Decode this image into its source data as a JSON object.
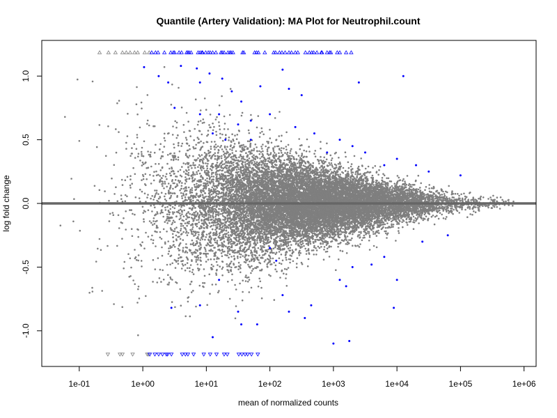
{
  "chart_data": {
    "type": "scatter",
    "title": "Quantile (Artery Validation): MA Plot for Neutrophil.count",
    "xlabel": "mean of normalized counts",
    "ylabel": "log fold change",
    "xscale": "log10",
    "xlim_log10": [
      -1.59,
      6.19
    ],
    "ylim": [
      -1.28,
      1.28
    ],
    "x_ticks": [
      {
        "log10": -1,
        "label": "1e-01"
      },
      {
        "log10": 0,
        "label": "1e+00"
      },
      {
        "log10": 1,
        "label": "1e+01"
      },
      {
        "log10": 2,
        "label": "1e+02"
      },
      {
        "log10": 3,
        "label": "1e+03"
      },
      {
        "log10": 4,
        "label": "1e+04"
      },
      {
        "log10": 5,
        "label": "1e+05"
      },
      {
        "log10": 6,
        "label": "1e+06"
      }
    ],
    "y_ticks": [
      {
        "value": 1.0,
        "label": "1.0"
      },
      {
        "value": 0.5,
        "label": "0.5"
      },
      {
        "value": 0.0,
        "label": "0.0"
      },
      {
        "value": -0.5,
        "label": "-0.5"
      },
      {
        "value": -1.0,
        "label": "-1.0"
      }
    ],
    "reference_line": 0,
    "colors": {
      "nonsignificant": "#7f7f7f",
      "significant": "#0000ff",
      "reference": "#666666"
    },
    "nonsignificant_cloud": {
      "n_points": 16000,
      "log10_mean_range": [
        -1.35,
        5.85
      ],
      "log10_mean_center": 2.6,
      "lfc_sd_at_low_counts": 0.45,
      "lfc_sd_at_high_counts": 0.02
    },
    "out_of_range_marker_lfc": 1.186,
    "gray_triangles_up_log10": [
      -0.68,
      -0.54,
      -0.43,
      -0.32,
      -0.26,
      -0.2,
      -0.13,
      -0.08,
      0.03,
      0.1
    ],
    "blue_triangles_up_log10": [
      0.14,
      0.2,
      0.24,
      0.34,
      0.44,
      0.48,
      0.5,
      0.57,
      0.61,
      0.69,
      0.71,
      0.73,
      0.76,
      0.87,
      0.9,
      0.93,
      0.94,
      0.99,
      1.03,
      1.06,
      1.1,
      1.15,
      1.23,
      1.25,
      1.28,
      1.34,
      1.37,
      1.39,
      1.42,
      1.57,
      1.59,
      1.76,
      1.79,
      1.82,
      1.92,
      2.06,
      2.09,
      2.15,
      2.19,
      2.24,
      2.3,
      2.34,
      2.4,
      2.44,
      2.56,
      2.62,
      2.66,
      2.69,
      2.74,
      2.81,
      2.82,
      2.9,
      2.94,
      2.96,
      3.06,
      3.1,
      3.2,
      3.28
    ],
    "gray_triangles_down_log10": [
      -0.55,
      -0.36,
      -0.32,
      -0.16,
      0.07,
      0.09
    ],
    "blue_triangles_down_log10": [
      0.11,
      0.19,
      0.25,
      0.31,
      0.37,
      0.39,
      0.45,
      0.62,
      0.67,
      0.71,
      0.8,
      0.96,
      1.06,
      1.16,
      1.28,
      1.33,
      1.51,
      1.56,
      1.61,
      1.65,
      1.71,
      1.81
    ],
    "significant_points": [
      [
        0.02,
        1.07
      ],
      [
        0.25,
        1.0
      ],
      [
        0.4,
        0.95
      ],
      [
        0.6,
        1.08
      ],
      [
        0.85,
        1.06
      ],
      [
        0.9,
        0.95
      ],
      [
        1.05,
        1.02
      ],
      [
        1.25,
        0.98
      ],
      [
        1.4,
        0.88
      ],
      [
        1.55,
        0.8
      ],
      [
        1.85,
        0.92
      ],
      [
        2.2,
        1.05
      ],
      [
        2.3,
        0.9
      ],
      [
        2.5,
        0.85
      ],
      [
        3.4,
        0.95
      ],
      [
        4.1,
        1.0
      ],
      [
        0.5,
        0.75
      ],
      [
        0.9,
        0.7
      ],
      [
        1.2,
        0.7
      ],
      [
        1.5,
        0.62
      ],
      [
        1.7,
        0.65
      ],
      [
        2.0,
        0.7
      ],
      [
        2.4,
        0.6
      ],
      [
        2.7,
        0.55
      ],
      [
        3.1,
        0.5
      ],
      [
        3.3,
        0.45
      ],
      [
        3.5,
        0.4
      ],
      [
        4.0,
        0.35
      ],
      [
        4.3,
        0.3
      ],
      [
        4.5,
        0.25
      ],
      [
        5.0,
        0.22
      ],
      [
        3.8,
        0.3
      ],
      [
        2.9,
        0.4
      ],
      [
        1.1,
        0.55
      ],
      [
        1.3,
        0.5
      ],
      [
        1.7,
        0.5
      ],
      [
        0.45,
        -0.82
      ],
      [
        0.9,
        -0.8
      ],
      [
        1.2,
        -0.6
      ],
      [
        1.5,
        -0.85
      ],
      [
        1.55,
        -0.95
      ],
      [
        1.8,
        -0.95
      ],
      [
        2.1,
        -0.45
      ],
      [
        2.2,
        -0.72
      ],
      [
        2.3,
        -0.85
      ],
      [
        2.55,
        -0.9
      ],
      [
        2.65,
        -0.8
      ],
      [
        3.1,
        -0.6
      ],
      [
        3.2,
        -0.65
      ],
      [
        3.3,
        -0.5
      ],
      [
        3.6,
        -0.48
      ],
      [
        3.8,
        -0.42
      ],
      [
        4.0,
        -0.6
      ],
      [
        4.4,
        -0.3
      ],
      [
        4.8,
        -0.25
      ],
      [
        3.0,
        -1.1
      ],
      [
        3.25,
        -1.08
      ],
      [
        1.1,
        -1.05
      ],
      [
        3.95,
        -0.82
      ],
      [
        2.0,
        -0.35
      ]
    ]
  }
}
